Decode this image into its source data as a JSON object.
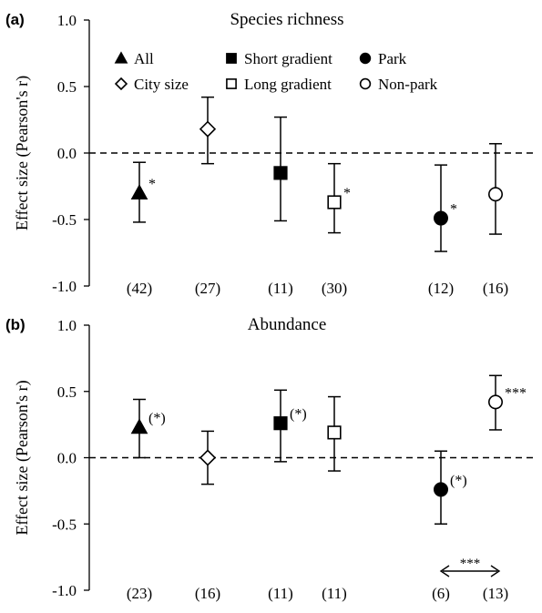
{
  "chart_data": [
    {
      "panel_label": "(a)",
      "title": "Species richness",
      "type": "scatter",
      "ylabel": "Effect size (Pearson's r)",
      "ylim": [
        -1.0,
        1.0
      ],
      "yticks": [
        "1.0",
        "0.5",
        "0.0",
        "-0.5",
        "-1.0"
      ],
      "zero_line": "dashed",
      "legend_placement": "top",
      "series": [
        {
          "name": "All",
          "marker": "filled-triangle",
          "value": -0.3,
          "ci": [
            -0.52,
            -0.07
          ],
          "n_label": "(42)",
          "sig": "*"
        },
        {
          "name": "City size",
          "marker": "open-diamond",
          "value": 0.18,
          "ci": [
            -0.08,
            0.42
          ],
          "n_label": "(27)",
          "sig": ""
        },
        {
          "name": "Short gradient",
          "marker": "filled-square",
          "value": -0.15,
          "ci": [
            -0.51,
            0.27
          ],
          "n_label": "(11)",
          "sig": ""
        },
        {
          "name": "Long gradient",
          "marker": "open-square",
          "value": -0.37,
          "ci": [
            -0.6,
            -0.08
          ],
          "n_label": "(30)",
          "sig": "*"
        },
        {
          "name": "Park",
          "marker": "filled-circle",
          "value": -0.49,
          "ci": [
            -0.74,
            -0.09
          ],
          "n_label": "(12)",
          "sig": "*"
        },
        {
          "name": "Non-park",
          "marker": "open-circle",
          "value": -0.31,
          "ci": [
            -0.61,
            0.07
          ],
          "n_label": "(16)",
          "sig": ""
        }
      ]
    },
    {
      "panel_label": "(b)",
      "title": "Abundance",
      "type": "scatter",
      "ylabel": "Effect size (Pearson's r)",
      "ylim": [
        -1.0,
        1.0
      ],
      "yticks": [
        "1.0",
        "0.5",
        "0.0",
        "-0.5",
        "-1.0"
      ],
      "zero_line": "dashed",
      "series": [
        {
          "name": "All",
          "marker": "filled-triangle",
          "value": 0.23,
          "ci": [
            0.0,
            0.44
          ],
          "n_label": "(23)",
          "sig": "(*)"
        },
        {
          "name": "City size",
          "marker": "open-diamond",
          "value": 0.0,
          "ci": [
            -0.2,
            0.2
          ],
          "n_label": "(16)",
          "sig": ""
        },
        {
          "name": "Short gradient",
          "marker": "filled-square",
          "value": 0.26,
          "ci": [
            -0.03,
            0.51
          ],
          "n_label": "(11)",
          "sig": "(*)"
        },
        {
          "name": "Long gradient",
          "marker": "open-square",
          "value": 0.19,
          "ci": [
            -0.1,
            0.46
          ],
          "n_label": "(11)",
          "sig": ""
        },
        {
          "name": "Park",
          "marker": "filled-circle",
          "value": -0.24,
          "ci": [
            -0.5,
            0.05
          ],
          "n_label": "(6)",
          "sig": "(*)"
        },
        {
          "name": "Non-park",
          "marker": "open-circle",
          "value": 0.42,
          "ci": [
            0.21,
            0.62
          ],
          "n_label": "(13)",
          "sig": "***"
        }
      ],
      "comparison_annotation": {
        "between": [
          "Park",
          "Non-park"
        ],
        "label": "***"
      }
    }
  ]
}
